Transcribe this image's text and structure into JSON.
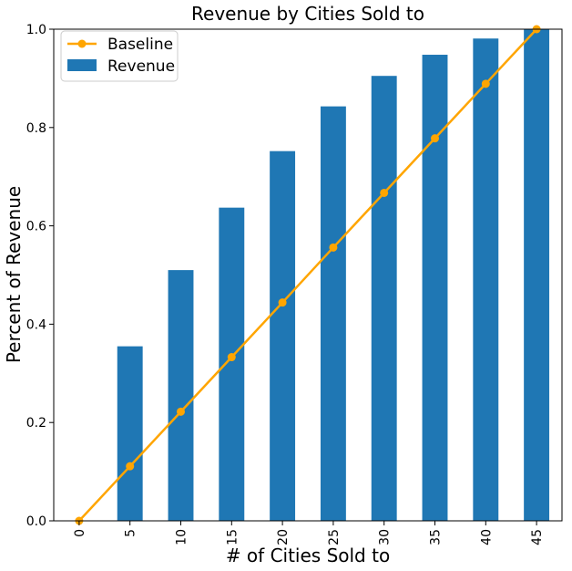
{
  "chart_data": {
    "type": "bar",
    "title": "Revenue by Cities Sold to",
    "xlabel": "# of Cities Sold to",
    "ylabel": "Percent of Revenue",
    "categories": [
      "0",
      "5",
      "10",
      "15",
      "20",
      "25",
      "30",
      "35",
      "40",
      "45"
    ],
    "ylim": [
      0,
      1.0
    ],
    "yticks": [
      "0.0",
      "0.2",
      "0.4",
      "0.6",
      "0.8",
      "1.0"
    ],
    "legend_position": "top-left",
    "grid": false,
    "series": [
      {
        "name": "Revenue",
        "kind": "bar",
        "color": "#1f77b4",
        "values": [
          0.0,
          0.355,
          0.51,
          0.637,
          0.752,
          0.843,
          0.905,
          0.948,
          0.981,
          1.0
        ]
      },
      {
        "name": "Baseline",
        "kind": "line",
        "color": "#ffa500",
        "values": [
          0.0,
          0.111,
          0.222,
          0.333,
          0.444,
          0.556,
          0.667,
          0.778,
          0.889,
          1.0
        ]
      }
    ]
  }
}
